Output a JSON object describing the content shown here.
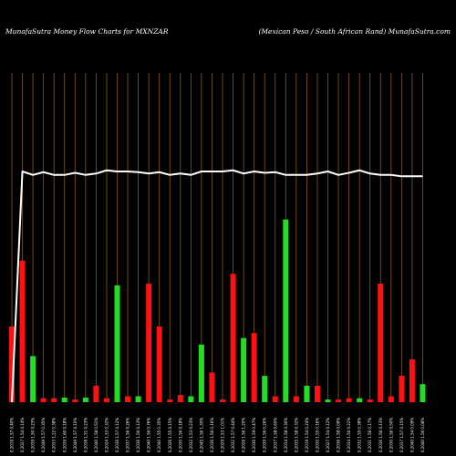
{
  "chart_data": {
    "type": "bar",
    "title_left": "MunafaSutra  Money  Flow  Charts for MXNZAR",
    "title_right": "(Mexican  Peso  / South African  Rand) MunafaSutra.com",
    "colors": {
      "background": "#000000",
      "grid": "#8B5A0C",
      "up": "#22dd22",
      "down": "#ff1111",
      "line": "#ffffff"
    },
    "ylim": [
      0,
      1
    ],
    "line_ylim": [
      0,
      1
    ],
    "categories": [
      "0.2019 1.57 0.40%",
      "0.2027 1.54 0.14%",
      "0.2039 1.50 0.23%",
      "0.2049 1.57 0.35%",
      "0.2033 1.22 0.38%",
      "0.2039 1.60 0.18%",
      "0.2049 1.57 0.10%",
      "0.2038 1.51 0.23%",
      "0.2040 1.58 0.51%",
      "0.2024 1.53 0.32%",
      "0.2036 1.57 0.12%",
      "0.2037 1.56 0.26%",
      "0.2036 1.56 0.13%",
      "0.2040 1.56 0.76%",
      "0.2040 1.55 0.35%",
      "0.2026 1.55 0.15%",
      "0.2030 1.56 0.18%",
      "0.2032 1.53 0.23%",
      "0.2045 1.56 1.35%",
      "0.2036 1.56 0.16%",
      "0.2029 1.53 1.01%",
      "0.2032 1.57 0.44%",
      "0.2026 1.56 1.20%",
      "0.2036 1.59 0.47%",
      "0.2039 1.56 0.26%",
      "0.2037 1.58 0.65%",
      "0.2034 1.58 0.30%",
      "0.2035 1.58 0.32%",
      "0.2019 1.54 0.24%",
      "0.2030 1.55 0.16%",
      "0.2027 1.54 0.12%",
      "0.2036 1.58 0.09%",
      "0.2034 1.56 0.22%",
      "0.2032 1.55 0.38%",
      "0.2031 1.56 0.17%",
      "0.2036 1.56 0.13%",
      "0.2030 1.56 0.50%",
      "0.2037 1.57 0.15%",
      "0.2040 1.54 0.09%",
      "0.2040 1.56 0.08%"
    ],
    "bars": [
      {
        "value": 0.23,
        "dir": "down"
      },
      {
        "value": 0.43,
        "dir": "down"
      },
      {
        "value": 0.14,
        "dir": "up"
      },
      {
        "value": 0.012,
        "dir": "down"
      },
      {
        "value": 0.012,
        "dir": "down"
      },
      {
        "value": 0.014,
        "dir": "up"
      },
      {
        "value": 0.008,
        "dir": "down"
      },
      {
        "value": 0.014,
        "dir": "up"
      },
      {
        "value": 0.05,
        "dir": "down"
      },
      {
        "value": 0.012,
        "dir": "down"
      },
      {
        "value": 0.355,
        "dir": "up"
      },
      {
        "value": 0.018,
        "dir": "down"
      },
      {
        "value": 0.018,
        "dir": "up"
      },
      {
        "value": 0.36,
        "dir": "down"
      },
      {
        "value": 0.23,
        "dir": "down"
      },
      {
        "value": 0.008,
        "dir": "down"
      },
      {
        "value": 0.022,
        "dir": "down"
      },
      {
        "value": 0.018,
        "dir": "up"
      },
      {
        "value": 0.175,
        "dir": "up"
      },
      {
        "value": 0.09,
        "dir": "down"
      },
      {
        "value": 0.008,
        "dir": "down"
      },
      {
        "value": 0.39,
        "dir": "down"
      },
      {
        "value": 0.195,
        "dir": "up"
      },
      {
        "value": 0.21,
        "dir": "down"
      },
      {
        "value": 0.08,
        "dir": "up"
      },
      {
        "value": 0.018,
        "dir": "down"
      },
      {
        "value": 0.555,
        "dir": "up"
      },
      {
        "value": 0.018,
        "dir": "down"
      },
      {
        "value": 0.05,
        "dir": "up"
      },
      {
        "value": 0.05,
        "dir": "down"
      },
      {
        "value": 0.008,
        "dir": "up"
      },
      {
        "value": 0.008,
        "dir": "down"
      },
      {
        "value": 0.012,
        "dir": "down"
      },
      {
        "value": 0.012,
        "dir": "up"
      },
      {
        "value": 0.008,
        "dir": "down"
      },
      {
        "value": 0.36,
        "dir": "down"
      },
      {
        "value": 0.018,
        "dir": "down"
      },
      {
        "value": 0.08,
        "dir": "down"
      },
      {
        "value": 0.13,
        "dir": "down"
      },
      {
        "value": 0.055,
        "dir": "up"
      }
    ],
    "line": [
      0.0,
      1.0,
      0.985,
      0.997,
      0.985,
      0.985,
      0.994,
      0.985,
      0.991,
      1.005,
      1.0,
      1.0,
      0.997,
      0.991,
      0.997,
      0.985,
      0.991,
      0.985,
      1.0,
      1.0,
      1.0,
      1.005,
      0.991,
      1.0,
      0.994,
      0.997,
      0.985,
      0.985,
      0.985,
      0.991,
      1.0,
      0.985,
      0.994,
      1.005,
      0.991,
      0.985,
      0.985,
      0.979,
      0.979,
      0.979
    ]
  }
}
